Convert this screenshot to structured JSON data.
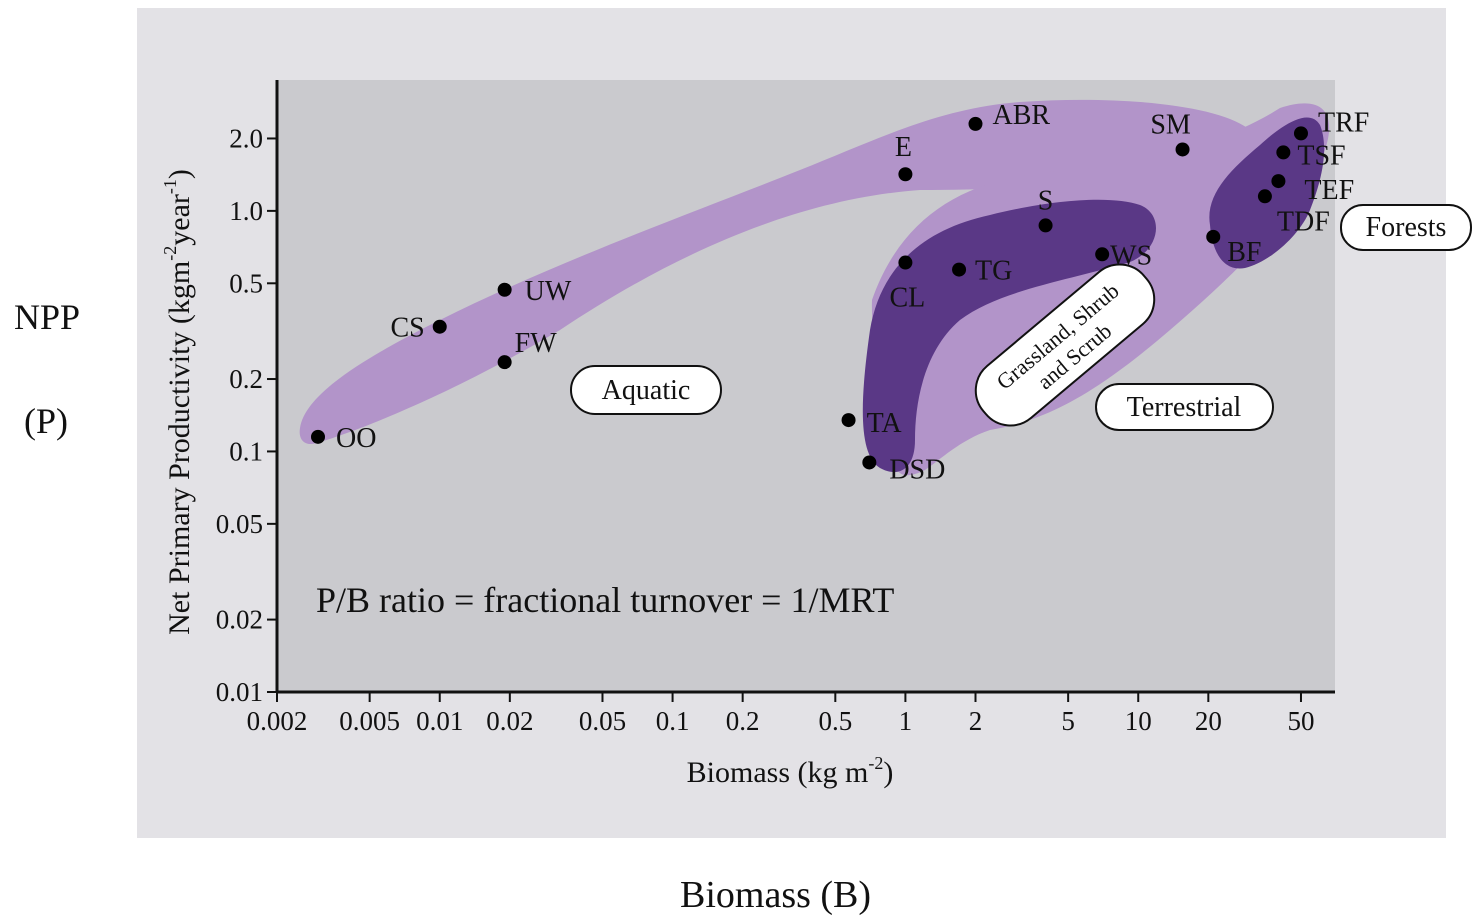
{
  "outer_labels": {
    "npp": "NPP",
    "p": "(P)",
    "biomass_b": "Biomass (B)"
  },
  "colors": {
    "panel_bg": "#e3e2e6",
    "plot_bg": "#cacace",
    "region_light": "#b294c9",
    "region_dark": "#5a3886",
    "point": "#000000"
  },
  "chart_data": {
    "type": "scatter",
    "x_scale": "log",
    "y_scale": "log",
    "xlim": [
      0.002,
      70
    ],
    "ylim": [
      0.01,
      3.5
    ],
    "xlabel_main": "Biomass (kg m",
    "xlabel_sup": "-2",
    "xlabel_end": ")",
    "ylabel_main": "Net Primary Productivity (kgm",
    "ylabel_sup1": "-2",
    "ylabel_mid": "year",
    "ylabel_sup2": "-1",
    "ylabel_end": ")",
    "x_ticks": [
      {
        "v": 0.002,
        "label": "0.002"
      },
      {
        "v": 0.005,
        "label": "0.005"
      },
      {
        "v": 0.01,
        "label": "0.01"
      },
      {
        "v": 0.02,
        "label": "0.02"
      },
      {
        "v": 0.05,
        "label": "0.05"
      },
      {
        "v": 0.1,
        "label": "0.1"
      },
      {
        "v": 0.2,
        "label": "0.2"
      },
      {
        "v": 0.5,
        "label": "0.5"
      },
      {
        "v": 1,
        "label": "1"
      },
      {
        "v": 2,
        "label": "2"
      },
      {
        "v": 5,
        "label": "5"
      },
      {
        "v": 10,
        "label": "10"
      },
      {
        "v": 20,
        "label": "20"
      },
      {
        "v": 50,
        "label": "50"
      }
    ],
    "y_ticks": [
      {
        "v": 0.01,
        "label": "0.01"
      },
      {
        "v": 0.02,
        "label": "0.02"
      },
      {
        "v": 0.05,
        "label": "0.05"
      },
      {
        "v": 0.1,
        "label": "0.1"
      },
      {
        "v": 0.2,
        "label": "0.2"
      },
      {
        "v": 0.5,
        "label": "0.5"
      },
      {
        "v": 1.0,
        "label": "1.0"
      },
      {
        "v": 2.0,
        "label": "2.0"
      }
    ],
    "points": [
      {
        "label": "OO",
        "x": 0.003,
        "y": 0.115
      },
      {
        "label": "CS",
        "x": 0.01,
        "y": 0.33
      },
      {
        "label": "UW",
        "x": 0.019,
        "y": 0.47
      },
      {
        "label": "FW",
        "x": 0.019,
        "y": 0.235
      },
      {
        "label": "E",
        "x": 1.0,
        "y": 1.42
      },
      {
        "label": "ABR",
        "x": 2.0,
        "y": 2.3
      },
      {
        "label": "SM",
        "x": 15.5,
        "y": 1.8
      },
      {
        "label": "TRF",
        "x": 50,
        "y": 2.1
      },
      {
        "label": "TSF",
        "x": 42,
        "y": 1.75
      },
      {
        "label": "TEF",
        "x": 40,
        "y": 1.33
      },
      {
        "label": "TDF",
        "x": 35,
        "y": 1.15
      },
      {
        "label": "BF",
        "x": 21,
        "y": 0.78
      },
      {
        "label": "S",
        "x": 4,
        "y": 0.87
      },
      {
        "label": "WS",
        "x": 7,
        "y": 0.66
      },
      {
        "label": "TG",
        "x": 1.7,
        "y": 0.57
      },
      {
        "label": "CL",
        "x": 1.0,
        "y": 0.61
      },
      {
        "label": "TA",
        "x": 0.57,
        "y": 0.135
      },
      {
        "label": "DSD",
        "x": 0.7,
        "y": 0.09
      }
    ],
    "regions": [
      {
        "name": "Aquatic"
      },
      {
        "name": "Terrestrial"
      },
      {
        "name": "Grassland, Shrub and Scrub"
      },
      {
        "name": "Forests"
      }
    ],
    "region_label_lines": {
      "aquatic": "Aquatic",
      "terrestrial": "Terrestrial",
      "forests": "Forests",
      "grassland_line1": "Grassland, Shrub",
      "grassland_line2": "and Scrub"
    },
    "annotation": "P/B ratio = fractional turnover = 1/MRT"
  }
}
